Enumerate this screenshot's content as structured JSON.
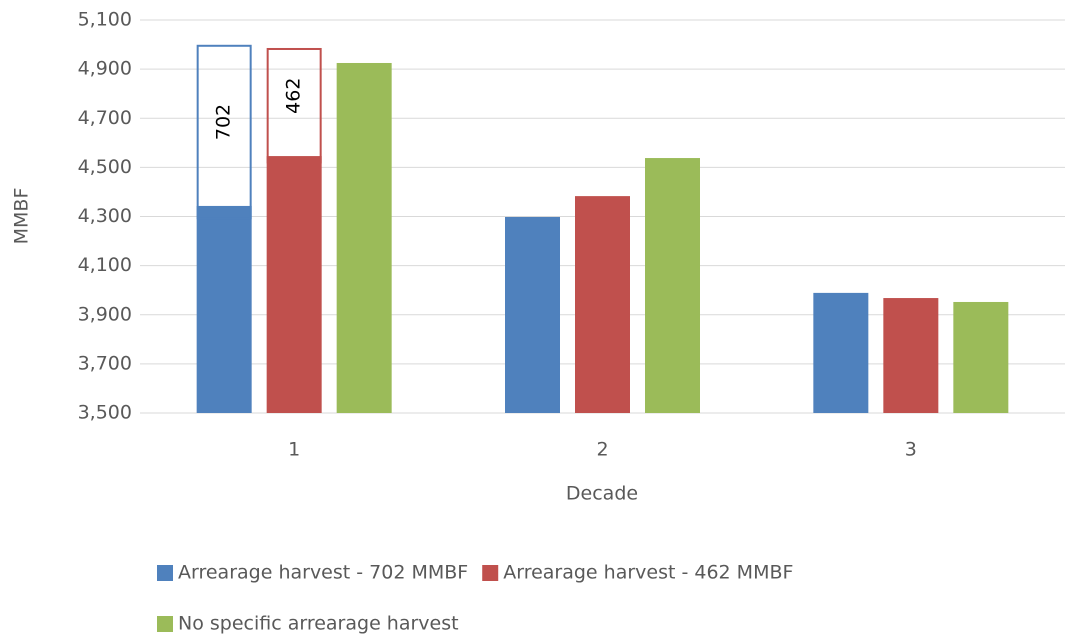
{
  "chart_data": {
    "type": "bar",
    "y_label": "MMBF",
    "x_label": "Decade",
    "categories": [
      "1",
      "2",
      "3"
    ],
    "series": [
      {
        "name": "Arrearage harvest - 702 MMBF",
        "color": "#4f81bd",
        "values": [
          4343,
          4298,
          3989
        ]
      },
      {
        "name": "Arrearage harvest - 462 MMBF",
        "color": "#c0504d",
        "values": [
          4546,
          4383,
          3968
        ]
      },
      {
        "name": "No specific arrearage harvest",
        "color": "#9bbb59",
        "values": [
          4925,
          4538,
          3952
        ]
      }
    ],
    "boxes": [
      {
        "series": 0,
        "category": 0,
        "top": 4995,
        "value": 702
      },
      {
        "series": 1,
        "category": 0,
        "top": 4982,
        "value": 462
      }
    ],
    "ylim": [
      3500,
      5100
    ],
    "yticks": [
      {
        "value": 3500,
        "label": "3,500"
      },
      {
        "value": 3700,
        "label": "3,700"
      },
      {
        "value": 3900,
        "label": "3,900"
      },
      {
        "value": 4100,
        "label": "4,100"
      },
      {
        "value": 4300,
        "label": "4,300"
      },
      {
        "value": 4500,
        "label": "4,500"
      },
      {
        "value": 4700,
        "label": "4,700"
      },
      {
        "value": 4900,
        "label": "4,900"
      },
      {
        "value": 5100,
        "label": "5,100"
      }
    ],
    "grid": true
  }
}
